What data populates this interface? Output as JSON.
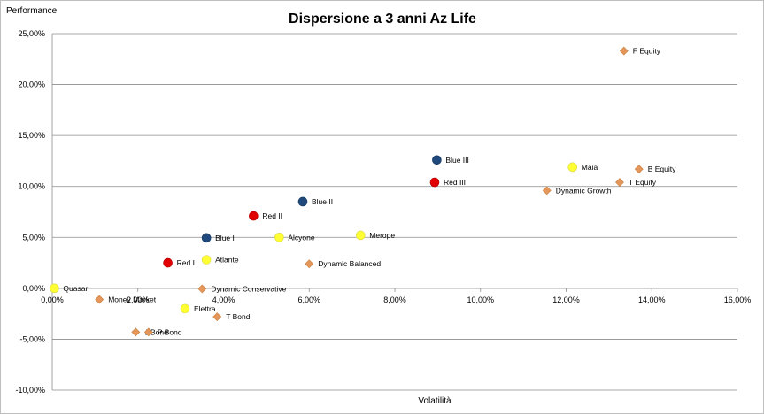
{
  "chart_data": {
    "type": "scatter",
    "title": "Dispersione a 3 anni Az Life",
    "xlabel": "Volatilità",
    "ylabel": "Performance",
    "xlim": [
      0,
      16
    ],
    "ylim": [
      -10,
      25
    ],
    "xticks": [
      "0,00%",
      "2,00%",
      "4,00%",
      "6,00%",
      "8,00%",
      "10,00%",
      "12,00%",
      "14,00%",
      "16,00%"
    ],
    "yticks": [
      "25,00%",
      "20,00%",
      "15,00%",
      "10,00%",
      "5,00%",
      "0,00%",
      "-5,00%",
      "-10,00%"
    ],
    "grid": "horizontal",
    "colors": {
      "blue": "#1f497d",
      "red": "#e00000",
      "yellow": "#ffff33",
      "orange": "#e5965a"
    },
    "points": [
      {
        "label": "F Equity",
        "x": 13.35,
        "y": 23.3,
        "shape": "diamond",
        "color": "orange"
      },
      {
        "label": "Blue III",
        "x": 8.98,
        "y": 12.6,
        "shape": "circle",
        "color": "blue"
      },
      {
        "label": "Maia",
        "x": 12.15,
        "y": 11.9,
        "shape": "circle",
        "color": "yellow"
      },
      {
        "label": "B Equity",
        "x": 13.7,
        "y": 11.7,
        "shape": "diamond",
        "color": "orange"
      },
      {
        "label": "Red III",
        "x": 8.93,
        "y": 10.4,
        "shape": "circle",
        "color": "red"
      },
      {
        "label": "T Equity",
        "x": 13.25,
        "y": 10.4,
        "shape": "diamond",
        "color": "orange"
      },
      {
        "label": "Dynamic Growth",
        "x": 11.55,
        "y": 9.6,
        "shape": "diamond",
        "color": "orange"
      },
      {
        "label": "Blue II",
        "x": 5.85,
        "y": 8.5,
        "shape": "circle",
        "color": "blue"
      },
      {
        "label": "Red II",
        "x": 4.7,
        "y": 7.1,
        "shape": "circle",
        "color": "red"
      },
      {
        "label": "Merope",
        "x": 7.2,
        "y": 5.2,
        "shape": "circle",
        "color": "yellow"
      },
      {
        "label": "Blue I",
        "x": 3.6,
        "y": 4.95,
        "shape": "circle",
        "color": "blue"
      },
      {
        "label": "Alcyone",
        "x": 5.3,
        "y": 5.0,
        "shape": "circle",
        "color": "yellow"
      },
      {
        "label": "Atlante",
        "x": 3.6,
        "y": 2.8,
        "shape": "circle",
        "color": "yellow"
      },
      {
        "label": "Red I",
        "x": 2.7,
        "y": 2.5,
        "shape": "circle",
        "color": "red"
      },
      {
        "label": "Dynamic Balanced",
        "x": 6.0,
        "y": 2.4,
        "shape": "diamond",
        "color": "orange"
      },
      {
        "label": "Quasar",
        "x": 0.05,
        "y": 0.0,
        "shape": "circle",
        "color": "yellow"
      },
      {
        "label": "Dynamic Conservative",
        "x": 3.5,
        "y": -0.05,
        "shape": "diamond",
        "color": "orange"
      },
      {
        "label": "Money Market",
        "x": 1.1,
        "y": -1.1,
        "shape": "diamond",
        "color": "orange"
      },
      {
        "label": "Elettra",
        "x": 3.1,
        "y": -2.0,
        "shape": "circle",
        "color": "yellow"
      },
      {
        "label": "T Bond",
        "x": 3.85,
        "y": -2.8,
        "shape": "diamond",
        "color": "orange"
      },
      {
        "label": "J Bond",
        "x": 1.95,
        "y": -4.3,
        "shape": "diamond",
        "color": "orange"
      },
      {
        "label": "P Bond",
        "x": 2.25,
        "y": -4.3,
        "shape": "diamond",
        "color": "orange"
      }
    ]
  }
}
